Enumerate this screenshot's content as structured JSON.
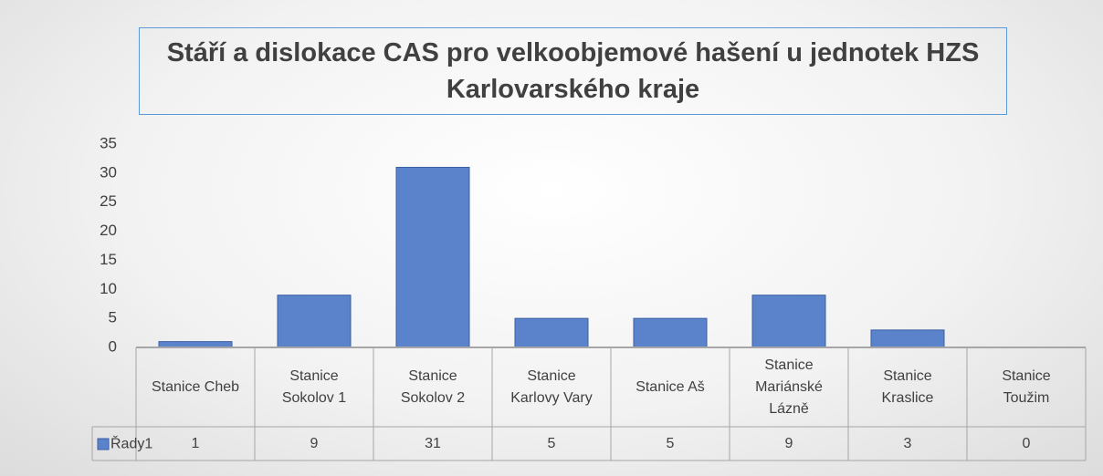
{
  "chart_data": {
    "type": "bar",
    "title": "Stáří a dislokace CAS pro velkoobjemové hašení u jednotek HZS Karlovarského kraje",
    "categories": [
      "Stanice Cheb",
      "Stanice Sokolov 1",
      "Stanice Sokolov 2",
      "Stanice Karlovy Vary",
      "Stanice Aš",
      "Stanice Mariánské Lázně",
      "Stanice Kraslice",
      "Stanice Toužim"
    ],
    "series": [
      {
        "name": "Řady1",
        "color": "#5b83cc",
        "values": [
          1,
          9,
          31,
          5,
          5,
          9,
          3,
          0
        ]
      }
    ],
    "ylim": [
      0,
      35
    ],
    "yticks": [
      0,
      5,
      10,
      15,
      20,
      25,
      30,
      35
    ],
    "grid": false
  }
}
